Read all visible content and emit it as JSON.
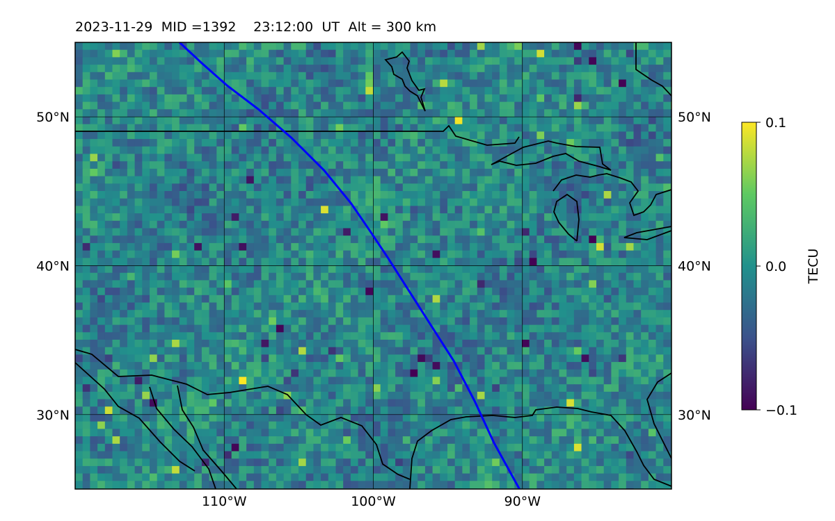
{
  "title": "2023-11-29  MID =1392    23:12:00  UT  Alt = 300 km",
  "map": {
    "lon_range": [
      -120,
      -80
    ],
    "lat_range": [
      25,
      55
    ],
    "lat_ticks": [
      {
        "value": 50,
        "label": "50°N"
      },
      {
        "value": 40,
        "label": "40°N"
      },
      {
        "value": 30,
        "label": "30°N"
      }
    ],
    "lon_ticks": [
      {
        "value": -110,
        "label": "110°W"
      },
      {
        "value": -100,
        "label": "100°W"
      },
      {
        "value": -90,
        "label": "90°W"
      }
    ],
    "track_color": "#0000ff",
    "track_points": [
      [
        -113,
        55
      ],
      [
        -111.5,
        53.6
      ],
      [
        -109.8,
        52.1
      ],
      [
        -107.7,
        50.5
      ],
      [
        -105.5,
        48.6
      ],
      [
        -103.3,
        46.4
      ],
      [
        -101.5,
        44.2
      ],
      [
        -100.2,
        42.3
      ],
      [
        -99.0,
        40.5
      ],
      [
        -97.6,
        38.3
      ],
      [
        -96.2,
        36.1
      ],
      [
        -94.6,
        33.6
      ],
      [
        -93.2,
        30.9
      ],
      [
        -91.9,
        28.1
      ],
      [
        -90.2,
        25
      ]
    ],
    "coastline_color": "#000000"
  },
  "colorbar": {
    "label": "TECU",
    "colormap": "viridis",
    "min": -0.1,
    "max": 0.1,
    "ticks": [
      {
        "value": 0.1,
        "label": "0.1"
      },
      {
        "value": 0.0,
        "label": "0.0"
      },
      {
        "value": -0.1,
        "label": "−0.1"
      }
    ]
  }
}
